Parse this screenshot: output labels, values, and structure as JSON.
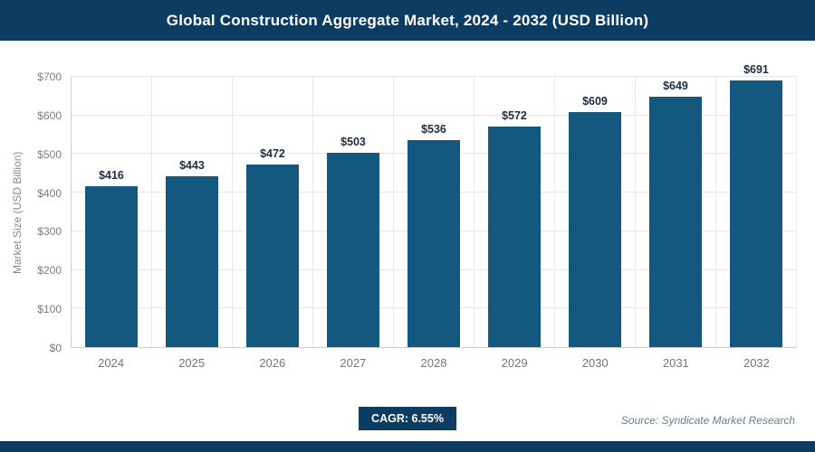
{
  "header": {
    "title": "Global Construction Aggregate Market, 2024 - 2032 (USD Billion)"
  },
  "chart_data": {
    "type": "bar",
    "title": "Global Construction Aggregate Market, 2024 - 2032 (USD Billion)",
    "categories": [
      "2024",
      "2025",
      "2026",
      "2027",
      "2028",
      "2029",
      "2030",
      "2031",
      "2032"
    ],
    "values": [
      416,
      443,
      472,
      503,
      536,
      572,
      609,
      649,
      691
    ],
    "value_labels": [
      "$416",
      "$443",
      "$472",
      "$503",
      "$536",
      "$572",
      "$609",
      "$649",
      "$691"
    ],
    "xlabel": "",
    "ylabel": "Market Size (USD Billion)",
    "ylim": [
      0,
      700
    ],
    "y_ticks": [
      0,
      100,
      200,
      300,
      400,
      500,
      600,
      700
    ],
    "y_tick_labels": [
      "$0",
      "$100",
      "$200",
      "$300",
      "$400",
      "$500",
      "$600",
      "$700"
    ],
    "grid": true,
    "legend": false,
    "bar_color": "#14587f"
  },
  "footer": {
    "cagr_label": "CAGR: 6.55%",
    "source": "Source: Syndicate Market Research"
  },
  "colors": {
    "header_bg": "#0d3c63",
    "bar": "#14587f",
    "value_label": "#1c2e40",
    "axis_text": "#7d7d7d",
    "gridline": "#e5e5e5",
    "badge_bg": "#0d3c63",
    "source_text": "#66808f"
  }
}
